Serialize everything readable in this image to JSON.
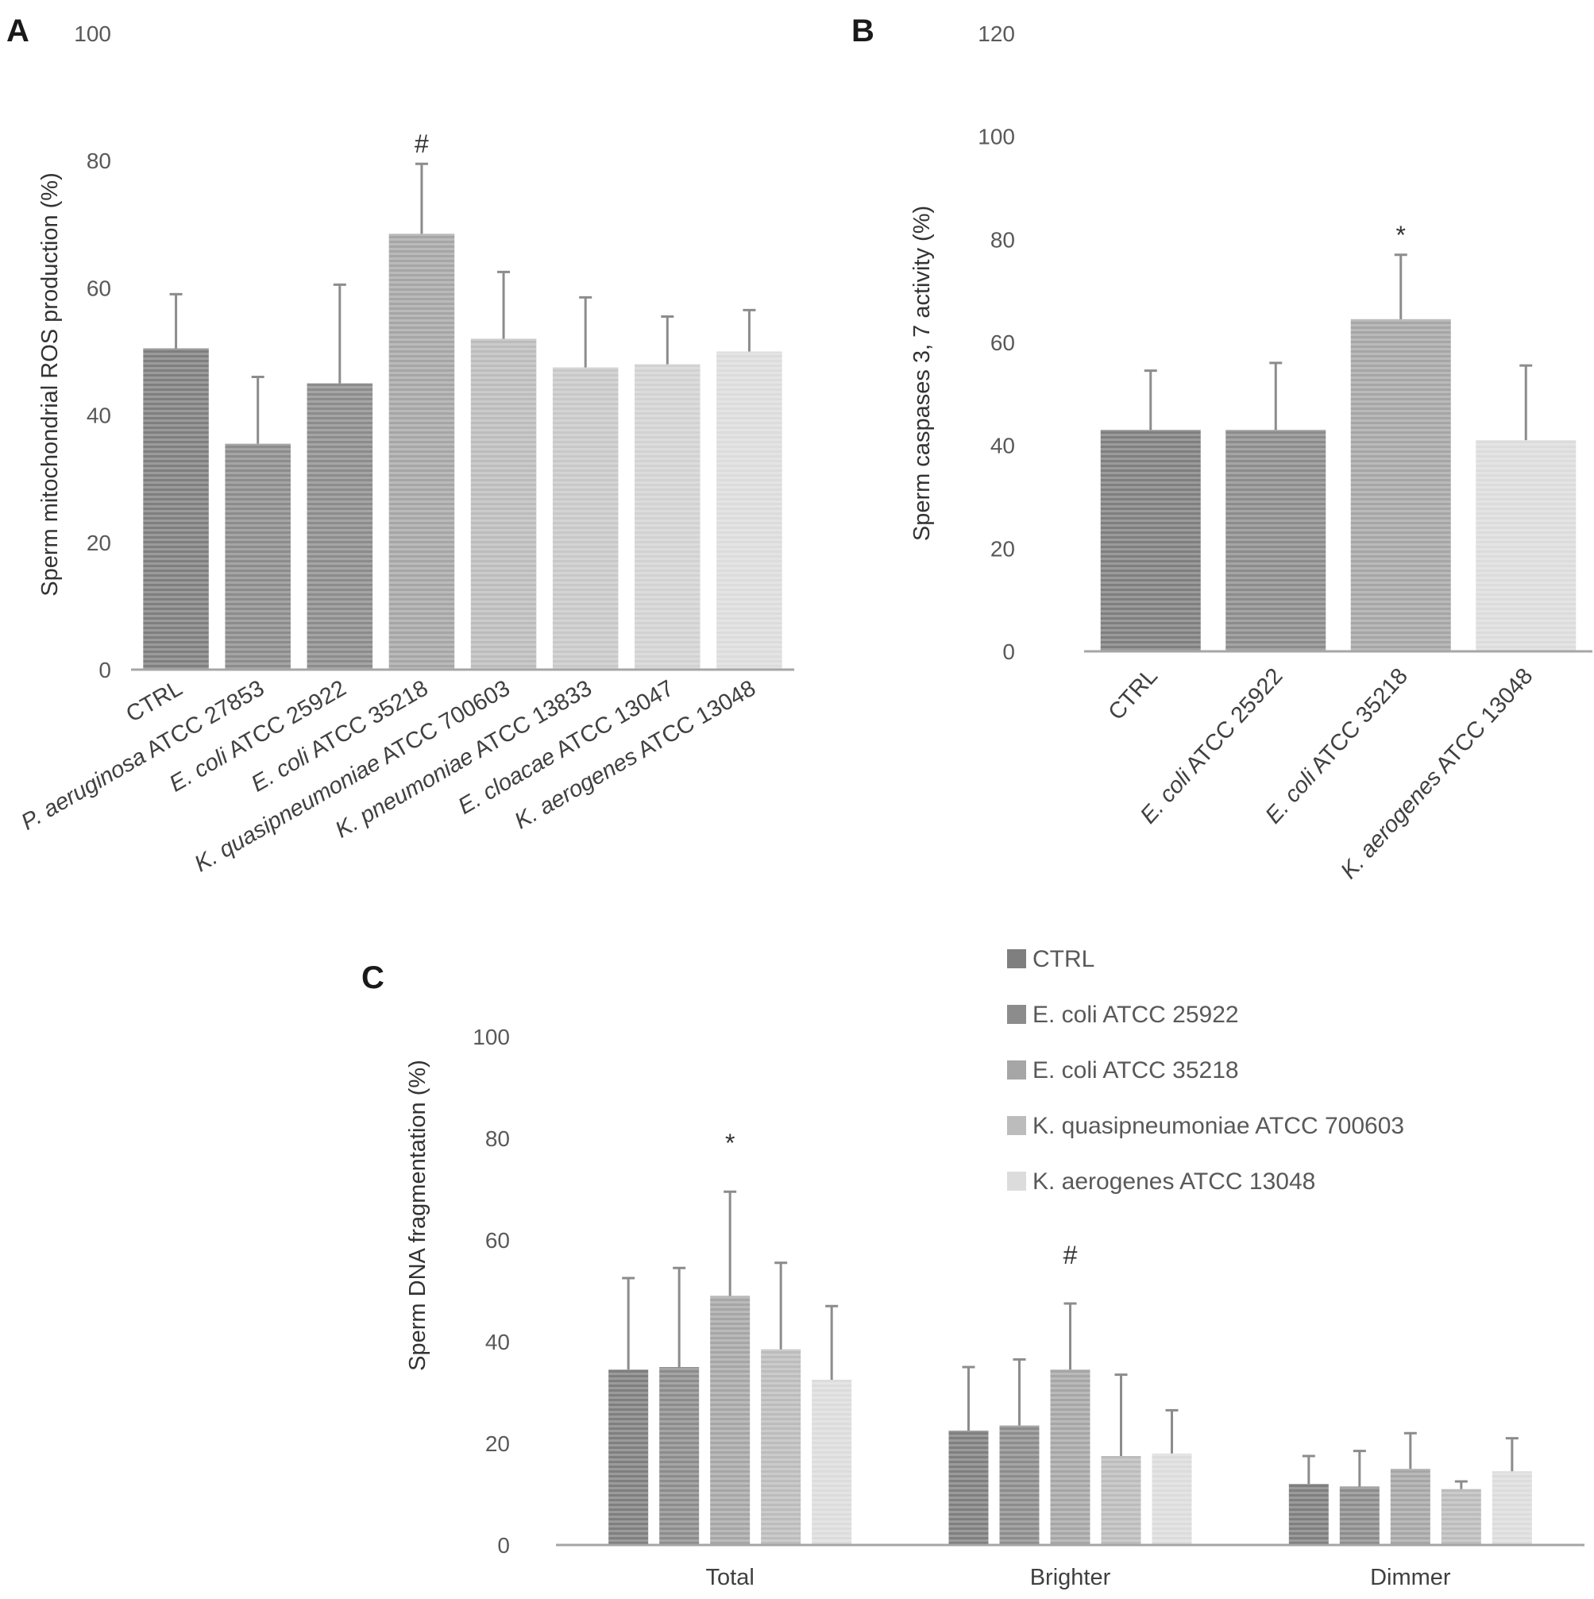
{
  "colors": {
    "CTRL": "#7f7f7f",
    "E. coli ATCC 25922": "#8c8c8c",
    "P. aeruginosa ATCC 27853": "#8c8c8c",
    "E. coli ATCC 35218": "#a6a6a6",
    "K. quasipneumoniae ATCC 700603": "#bcbcbc",
    "K. pneumoniae ATCC 13833": "#c8c8c8",
    "E. cloacae ATCC 13047": "#d2d2d2",
    "K. aerogenes ATCC 13048": "#dcdcdc"
  },
  "chart_data": [
    {
      "panel": "A",
      "type": "bar",
      "ylabel": "Sperm mitochondrial ROS production (%)",
      "ylim": [
        0,
        100
      ],
      "yticks": [
        0,
        20,
        40,
        60,
        80,
        100
      ],
      "categories": [
        {
          "species": "",
          "strain": "CTRL"
        },
        {
          "species": "P. aeruginosa",
          "strain": " ATCC 27853"
        },
        {
          "species": "E. coli",
          "strain": " ATCC 25922"
        },
        {
          "species": "E. coli",
          "strain": " ATCC 35218"
        },
        {
          "species": "K. quasipneumoniae",
          "strain": " ATCC 700603"
        },
        {
          "species": "K. pneumoniae",
          "strain": " ATCC 13833"
        },
        {
          "species": "E. cloacae",
          "strain": " ATCC 13047"
        },
        {
          "species": "K. aerogenes",
          "strain": " ATCC 13048"
        }
      ],
      "color_keys": [
        "CTRL",
        "P. aeruginosa ATCC 27853",
        "E. coli ATCC 25922",
        "E. coli ATCC 35218",
        "K. quasipneumoniae ATCC 700603",
        "K. pneumoniae ATCC 13833",
        "E. cloacae ATCC 13047",
        "K. aerogenes ATCC 13048"
      ],
      "values": [
        50.5,
        35.5,
        45,
        68.5,
        52,
        47.5,
        48,
        50
      ],
      "errors": [
        8.5,
        10.5,
        15.5,
        11,
        10.5,
        11,
        7.5,
        6.5
      ],
      "annotations": [
        "",
        "",
        "",
        "#",
        "",
        "",
        "",
        ""
      ],
      "grid": false
    },
    {
      "panel": "B",
      "type": "bar",
      "ylabel": "Sperm caspases 3, 7 activity (%)",
      "ylim": [
        0,
        120
      ],
      "yticks": [
        0,
        20,
        40,
        60,
        80,
        100,
        120
      ],
      "categories": [
        {
          "species": "",
          "strain": "CTRL"
        },
        {
          "species": "E. coli",
          "strain": " ATCC 25922"
        },
        {
          "species": "E. coli",
          "strain": " ATCC 35218"
        },
        {
          "species": "K. aerogenes",
          "strain": " ATCC 13048"
        }
      ],
      "color_keys": [
        "CTRL",
        "E. coli ATCC 25922",
        "E. coli ATCC 35218",
        "K. aerogenes ATCC 13048"
      ],
      "values": [
        43,
        43,
        64.5,
        41
      ],
      "errors": [
        11.5,
        13,
        12.5,
        14.5
      ],
      "annotations": [
        "",
        "",
        "*",
        ""
      ],
      "grid": false
    },
    {
      "panel": "C",
      "type": "bar",
      "ylabel": "Sperm DNA fragmentation (%)",
      "ylim": [
        0,
        100
      ],
      "yticks": [
        0,
        20,
        40,
        60,
        80,
        100
      ],
      "categories": [
        "Total",
        "Brighter",
        "Dimmer"
      ],
      "legend_position": "top-right",
      "series": [
        {
          "name": "CTRL",
          "color_key": "CTRL",
          "values": [
            34.5,
            22.5,
            12
          ],
          "errors": [
            18,
            12.5,
            5.5
          ]
        },
        {
          "name": "E. coli  ATCC 25922",
          "color_key": "E. coli ATCC 25922",
          "values": [
            35,
            23.5,
            11.5
          ],
          "errors": [
            19.5,
            13,
            7
          ]
        },
        {
          "name": "E. coli ATCC 35218",
          "color_key": "E. coli ATCC 35218",
          "values": [
            49,
            34.5,
            15
          ],
          "errors": [
            20.5,
            13,
            7
          ]
        },
        {
          "name": "K. quasipneumoniae ATCC 700603",
          "color_key": "K. quasipneumoniae ATCC 700603",
          "values": [
            38.5,
            17.5,
            11
          ],
          "errors": [
            17,
            16,
            1.5
          ]
        },
        {
          "name": "K. aerogenes ATCC 13048",
          "color_key": "K. aerogenes ATCC 13048",
          "values": [
            32.5,
            18,
            14.5
          ],
          "errors": [
            14.5,
            8.5,
            6.5
          ]
        }
      ],
      "annotations": [
        {
          "category": "Total",
          "series": "E. coli ATCC 35218",
          "text": "*"
        },
        {
          "category": "Brighter",
          "series": "E. coli ATCC 35218",
          "text": "#"
        }
      ],
      "grid": false
    }
  ]
}
